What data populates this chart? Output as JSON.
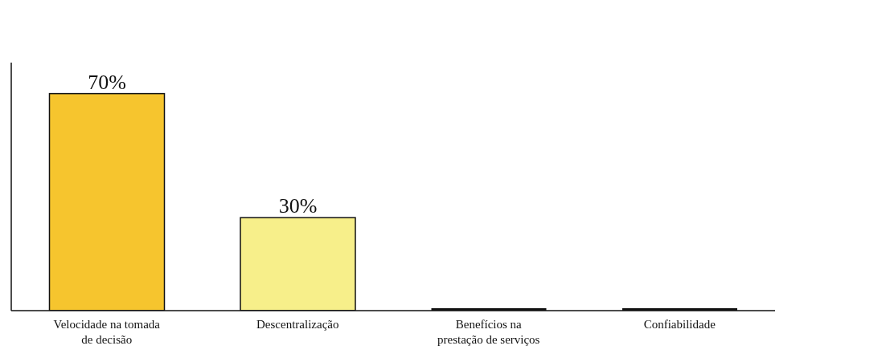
{
  "chart_data": {
    "type": "bar",
    "categories": [
      "Velocidade na tomada de decisão",
      "Descentralização",
      "Benefícios na prestação de serviços",
      "Confiabilidade"
    ],
    "values": [
      70,
      30,
      0,
      0
    ],
    "colors": [
      "#f6c52e",
      "#f7ef8a",
      "#111111",
      "#111111"
    ],
    "value_labels": [
      "70%",
      "30%",
      null,
      null
    ],
    "tick_labels": "x",
    "grid": false,
    "legend": false
  }
}
